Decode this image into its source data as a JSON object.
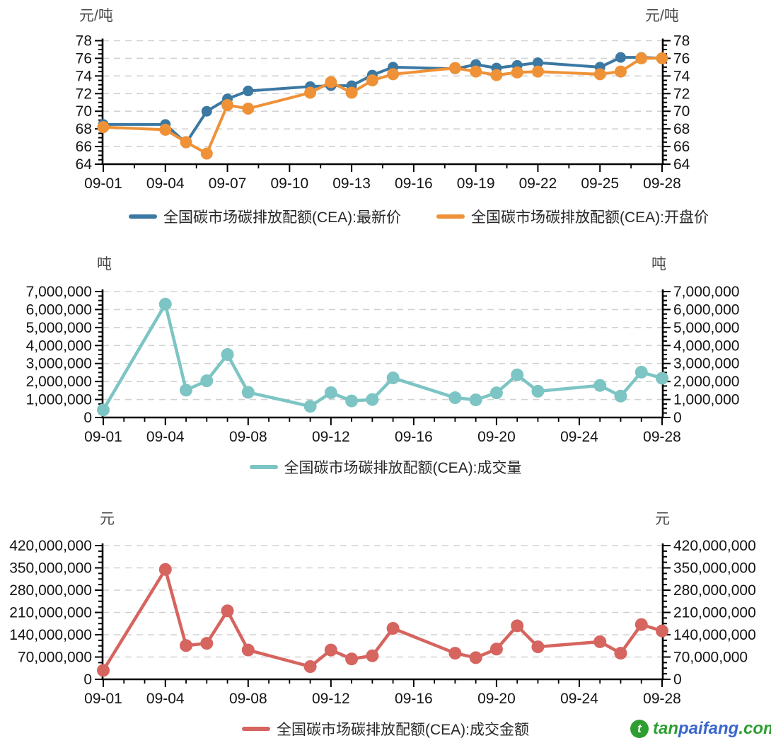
{
  "chart_data": [
    {
      "type": "line",
      "unit_left": "元/吨",
      "unit_right": "元/吨",
      "x_tick_labels": [
        "09-01",
        "09-04",
        "09-07",
        "09-10",
        "09-13",
        "09-16",
        "09-19",
        "09-22",
        "09-25",
        "09-28"
      ],
      "x_tick_days": [
        1,
        4,
        7,
        10,
        13,
        16,
        19,
        22,
        25,
        28
      ],
      "y_min": 64,
      "y_max": 78,
      "y_tick_values": [
        64,
        66,
        68,
        70,
        72,
        74,
        76,
        78
      ],
      "y_tick_labels": [
        "64",
        "66",
        "68",
        "70",
        "72",
        "74",
        "76",
        "78"
      ],
      "grid": "horizontal-dashed",
      "dates": [
        "09-01",
        "09-04",
        "09-05",
        "09-06",
        "09-07",
        "09-08",
        "09-11",
        "09-12",
        "09-13",
        "09-14",
        "09-15",
        "09-18",
        "09-19",
        "09-20",
        "09-21",
        "09-22",
        "09-25",
        "09-26",
        "09-27",
        "09-28"
      ],
      "days": [
        1,
        4,
        5,
        6,
        7,
        8,
        11,
        12,
        13,
        14,
        15,
        18,
        19,
        20,
        21,
        22,
        25,
        26,
        27,
        28
      ],
      "series": [
        {
          "name": "全国碳市场碳排放配额(CEA):最新价",
          "color": "#3b78a2",
          "values": [
            68.5,
            68.5,
            66.4,
            70.0,
            71.4,
            72.3,
            72.8,
            72.9,
            72.9,
            74.1,
            75.0,
            74.8,
            75.3,
            74.9,
            75.2,
            75.5,
            75.0,
            76.1,
            76.1,
            76.0
          ]
        },
        {
          "name": "全国碳市场碳排放配额(CEA):开盘价",
          "color": "#ef9237",
          "values": [
            68.2,
            67.9,
            66.5,
            65.2,
            70.7,
            70.3,
            72.1,
            73.3,
            72.1,
            73.5,
            74.2,
            74.9,
            74.5,
            74.1,
            74.4,
            74.5,
            74.2,
            74.5,
            76.0,
            76.0
          ]
        }
      ]
    },
    {
      "type": "line",
      "unit_left": "吨",
      "unit_right": "吨",
      "x_tick_labels": [
        "09-01",
        "09-04",
        "09-08",
        "09-12",
        "09-16",
        "09-20",
        "09-24",
        "09-28"
      ],
      "x_tick_days": [
        1,
        4,
        8,
        12,
        16,
        20,
        24,
        28
      ],
      "y_min": 0,
      "y_max": 7000000,
      "y_tick_values": [
        0,
        1000000,
        2000000,
        3000000,
        4000000,
        5000000,
        6000000,
        7000000
      ],
      "y_tick_labels": [
        "0",
        "1,000,000",
        "2,000,000",
        "3,000,000",
        "4,000,000",
        "5,000,000",
        "6,000,000",
        "7,000,000"
      ],
      "grid": "horizontal-dashed",
      "dates": [
        "09-01",
        "09-04",
        "09-05",
        "09-06",
        "09-07",
        "09-08",
        "09-11",
        "09-12",
        "09-13",
        "09-14",
        "09-15",
        "09-18",
        "09-19",
        "09-20",
        "09-21",
        "09-22",
        "09-25",
        "09-26",
        "09-27",
        "09-28"
      ],
      "days": [
        1,
        4,
        5,
        6,
        7,
        8,
        11,
        12,
        13,
        14,
        15,
        18,
        19,
        20,
        21,
        22,
        25,
        26,
        27,
        28
      ],
      "series": [
        {
          "name": "全国碳市场碳排放配额(CEA):成交量",
          "color": "#7cc5c4",
          "values": [
            420000,
            6300000,
            1520000,
            2040000,
            3500000,
            1400000,
            620000,
            1380000,
            920000,
            1000000,
            2200000,
            1100000,
            980000,
            1370000,
            2370000,
            1460000,
            1780000,
            1190000,
            2520000,
            2180000
          ]
        }
      ]
    },
    {
      "type": "line",
      "unit_left": "元",
      "unit_right": "元",
      "x_tick_labels": [
        "09-01",
        "09-04",
        "09-08",
        "09-12",
        "09-16",
        "09-20",
        "09-24",
        "09-28"
      ],
      "x_tick_days": [
        1,
        4,
        8,
        12,
        16,
        20,
        24,
        28
      ],
      "y_min": 0,
      "y_max": 420000000,
      "y_tick_values": [
        0,
        70000000,
        140000000,
        210000000,
        280000000,
        350000000,
        420000000
      ],
      "y_tick_labels": [
        "0",
        "70,000,000",
        "140,000,000",
        "210,000,000",
        "280,000,000",
        "350,000,000",
        "420,000,000"
      ],
      "grid": "horizontal-dashed",
      "dates": [
        "09-01",
        "09-04",
        "09-05",
        "09-06",
        "09-07",
        "09-08",
        "09-11",
        "09-12",
        "09-13",
        "09-14",
        "09-15",
        "09-18",
        "09-19",
        "09-20",
        "09-21",
        "09-22",
        "09-25",
        "09-26",
        "09-27",
        "09-28"
      ],
      "days": [
        1,
        4,
        5,
        6,
        7,
        8,
        11,
        12,
        13,
        14,
        15,
        18,
        19,
        20,
        21,
        22,
        25,
        26,
        27,
        28
      ],
      "series": [
        {
          "name": "全国碳市场碳排放配额(CEA):成交金额",
          "color": "#d6645f",
          "values": [
            28000000,
            345000000,
            106000000,
            113000000,
            215000000,
            92000000,
            40000000,
            92000000,
            64000000,
            74000000,
            160000000,
            82000000,
            68000000,
            95000000,
            168000000,
            102000000,
            118000000,
            82000000,
            172000000,
            152000000
          ]
        }
      ]
    }
  ],
  "watermark": {
    "icon": "tanpaifang-logo-icon",
    "icon_letter": "t",
    "parts": [
      {
        "text": "tan",
        "color": "#2f9e31"
      },
      {
        "text": "paifang",
        "color": "#3a66cc"
      },
      {
        "text": ".com",
        "color": "#2f9e31"
      }
    ]
  }
}
